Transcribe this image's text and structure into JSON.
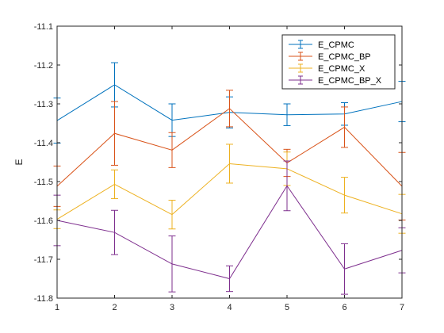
{
  "chart_data": {
    "type": "line",
    "title": "",
    "xlabel": "",
    "ylabel": "E",
    "xlim": [
      1,
      7
    ],
    "ylim": [
      -11.8,
      -11.1
    ],
    "x": [
      1,
      2,
      3,
      4,
      5,
      6,
      7
    ],
    "xticks": [
      "1",
      "2",
      "3",
      "4",
      "5",
      "6",
      "7"
    ],
    "yticks": [
      "-11.1",
      "-11.2",
      "-11.3",
      "-11.4",
      "-11.5",
      "-11.6",
      "-11.7",
      "-11.8"
    ],
    "ytick_values": [
      -11.1,
      -11.2,
      -11.3,
      -11.4,
      -11.5,
      -11.6,
      -11.7,
      -11.8
    ],
    "grid": false,
    "legend_position": "top-right",
    "series": [
      {
        "name": "E_CPMC",
        "color": "#0072BD",
        "values": [
          -11.343,
          -11.251,
          -11.342,
          -11.322,
          -11.328,
          -11.326,
          -11.294
        ],
        "errors": [
          0.058,
          0.057,
          0.042,
          0.04,
          0.028,
          0.029,
          0.052
        ]
      },
      {
        "name": "E_CPMC_BP",
        "color": "#D95319",
        "values": [
          -11.512,
          -11.376,
          -11.419,
          -11.312,
          -11.452,
          -11.36,
          -11.512
        ],
        "errors": [
          0.052,
          0.082,
          0.045,
          0.047,
          0.035,
          0.052,
          0.087
        ]
      },
      {
        "name": "E_CPMC_X",
        "color": "#EDB120",
        "values": [
          -11.597,
          -11.507,
          -11.585,
          -11.454,
          -11.467,
          -11.535,
          -11.583
        ],
        "errors": [
          0.024,
          0.037,
          0.037,
          0.05,
          0.043,
          0.046,
          0.05
        ]
      },
      {
        "name": "E_CPMC_BP_X",
        "color": "#7E2F8E",
        "values": [
          -11.6,
          -11.631,
          -11.712,
          -11.75,
          -11.511,
          -11.725,
          -11.677
        ],
        "errors": [
          0.065,
          0.057,
          0.072,
          0.033,
          0.064,
          0.065,
          0.058
        ]
      }
    ]
  }
}
